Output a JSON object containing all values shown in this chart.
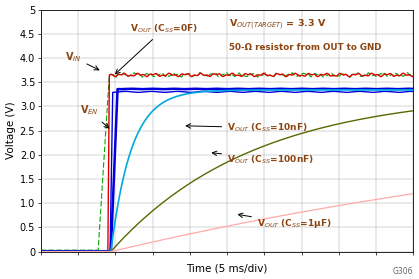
{
  "xlabel": "Time (5 ms/div)",
  "ylabel": "Voltage (V)",
  "xlim": [
    0,
    10
  ],
  "ylim": [
    0,
    5
  ],
  "annotation_text1": "V$_{OUT(TARGET)}$ = 3.3 V",
  "annotation_text2": "50-Ω resistor from OUT to GND",
  "label_vout_0f": "V$_{OUT}$ (C$_{SS}$=0F)",
  "label_vin": "V$_{IN}$",
  "label_ven": "V$_{EN}$",
  "label_vout_10nf": "V$_{OUT}$ (C$_{SS}$=10nF)",
  "label_vout_100nf": "V$_{OUT}$ (C$_{SS}$=100nF)",
  "label_vout_1uf": "V$_{OUT}$ (C$_{SS}$=1μF)",
  "watermark": "G306",
  "color_vin": "#dd0000",
  "color_ven": "#0000dd",
  "color_vout_0f_dashed": "#00aa00",
  "color_vout_0f_solid": "#0000dd",
  "color_vout_10nf": "#00aadd",
  "color_vout_100nf": "#556b00",
  "color_vout_1uf": "#ffaaaa",
  "color_annot": "#8B4513",
  "bg_color": "#ffffff",
  "rise_x": 1.8,
  "x_max": 10,
  "figw": 4.19,
  "figh": 2.79,
  "dpi": 100
}
